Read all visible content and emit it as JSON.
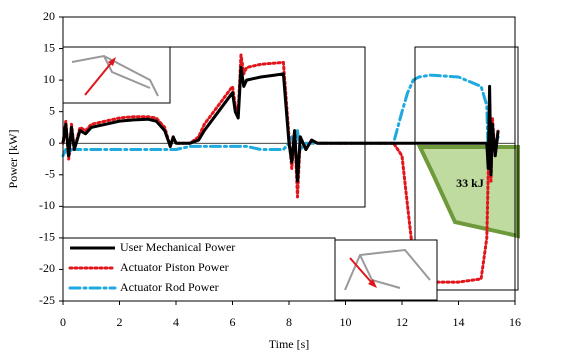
{
  "chart_data": {
    "type": "line",
    "x_label": "Time [s]",
    "y_label": "Power [kW]",
    "annotation": "33 kJ",
    "x": [
      0,
      0.1,
      0.2,
      0.3,
      0.4,
      0.6,
      0.8,
      1,
      1.5,
      2,
      2.5,
      3,
      3.3,
      3.6,
      3.8,
      3.9,
      4,
      4.5,
      4.8,
      5,
      5.5,
      6,
      6.1,
      6.2,
      6.3,
      6.4,
      6.5,
      7,
      7.5,
      7.8,
      8,
      8.1,
      8.2,
      8.3,
      8.4,
      8.6,
      8.8,
      9,
      10,
      11,
      11.7,
      12,
      12.2,
      12.4,
      12.6,
      13,
      14,
      14.8,
      15,
      15.05,
      15.1,
      15.15,
      15.2,
      15.3,
      15.4
    ],
    "series": [
      {
        "name": "User Mechanical Power",
        "color": "#000000",
        "style": "solid",
        "values": [
          0,
          3,
          -2,
          2.5,
          -1,
          2,
          1.5,
          2.5,
          3,
          3.5,
          3.7,
          3.8,
          3.5,
          2,
          -0.5,
          1,
          0,
          0,
          0.5,
          2,
          5,
          8,
          5,
          4,
          12,
          9,
          10,
          10.5,
          10.8,
          11,
          0,
          -3,
          2,
          -6,
          1,
          -1,
          0.5,
          0,
          0,
          0,
          0,
          0,
          0,
          0,
          0,
          0,
          0,
          0,
          0,
          -4,
          9,
          -5,
          3,
          -2,
          2
        ]
      },
      {
        "name": "Actuator Piston Power",
        "color": "#e0161c",
        "style": "dotted",
        "values": [
          0,
          3.5,
          -2.5,
          3,
          -1,
          2.5,
          2,
          3,
          3.5,
          4,
          4.2,
          4.2,
          4,
          2.5,
          -0.5,
          1,
          0,
          0,
          1,
          3,
          6,
          9,
          6,
          5,
          14,
          11,
          12,
          12.5,
          12.7,
          12.8,
          1,
          -4,
          2,
          -8.5,
          1,
          -1,
          0.5,
          0,
          0,
          0,
          0,
          -2,
          -10,
          -18,
          -21,
          -22,
          -22,
          -21.5,
          -15,
          -5,
          3,
          -6,
          4,
          -2,
          2
        ]
      },
      {
        "name": "Actuator Rod Power",
        "color": "#1eaadf",
        "style": "dashdot",
        "values": [
          -2,
          -1,
          -2,
          -1,
          -1,
          -1,
          -1,
          -1,
          -1,
          -1,
          -1,
          -1,
          -1,
          -1,
          -1,
          -1,
          -1,
          -0.5,
          -0.5,
          -0.5,
          -0.5,
          -0.5,
          -0.5,
          -0.5,
          -0.5,
          -0.5,
          -0.5,
          -1,
          -1,
          -1,
          0,
          1,
          -1,
          2,
          -1,
          0,
          0,
          0,
          0,
          0,
          0,
          5,
          8,
          10,
          10.5,
          10.8,
          10.5,
          9,
          6,
          -2,
          4,
          -3,
          2,
          -1,
          1
        ]
      }
    ],
    "xlim": [
      0,
      16
    ],
    "xticks": [
      0,
      2,
      4,
      6,
      8,
      10,
      12,
      14,
      16
    ],
    "ylim": [
      -25,
      20
    ],
    "yticks": [
      -25,
      -20,
      -15,
      -10,
      -5,
      0,
      5,
      10,
      15,
      20
    ],
    "legend": "lower-left"
  }
}
